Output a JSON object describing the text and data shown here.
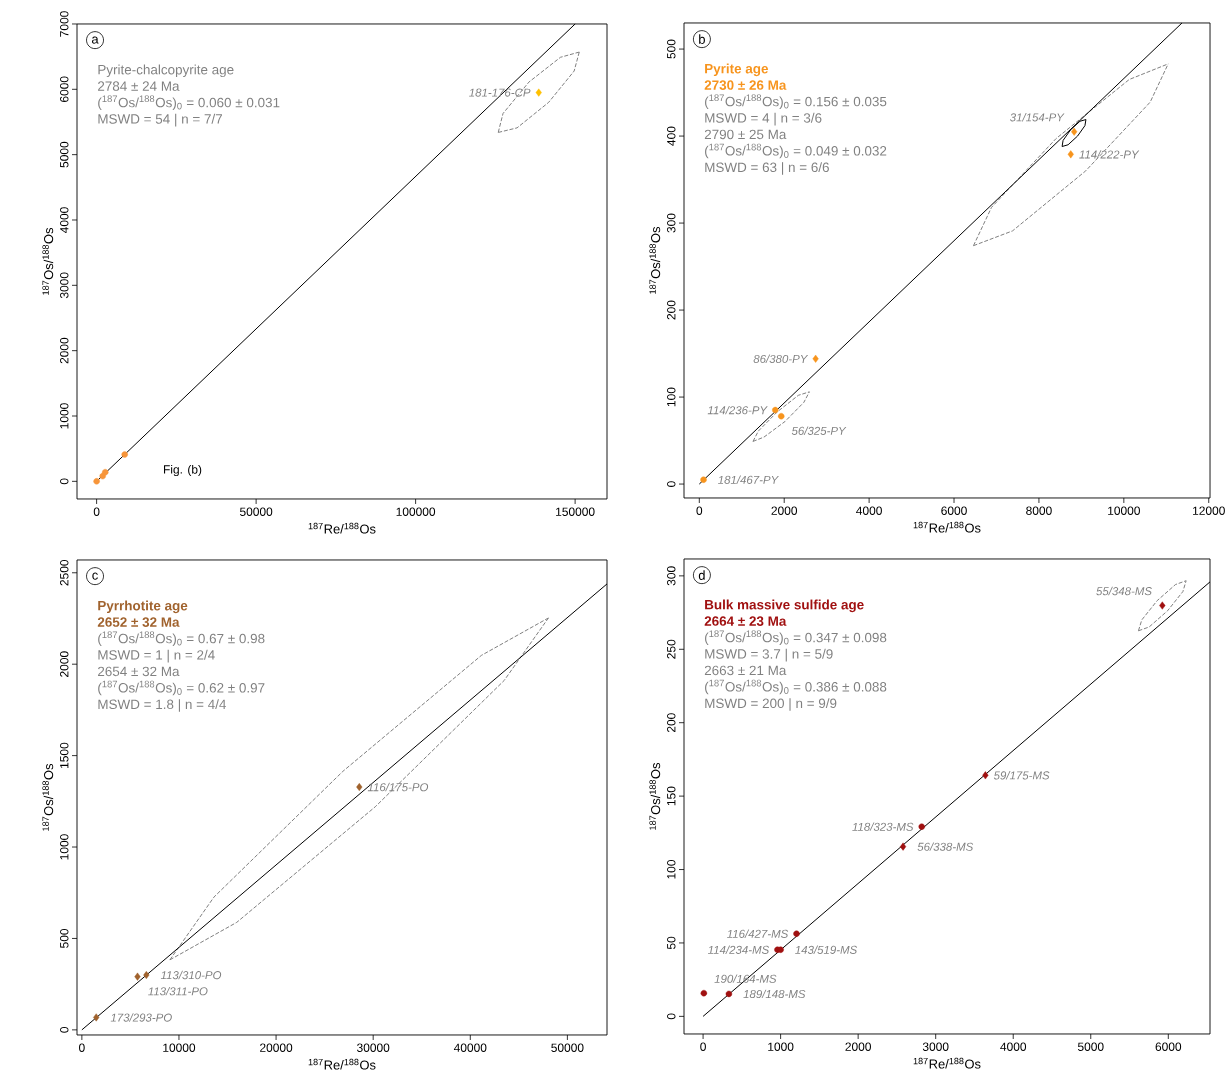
{
  "chart_data": [
    {
      "type": "scatter",
      "xlabel": "$^{187}$Re/$^{188}$Os",
      "ylabel": "$^{187}$Os/$^{188}$Os",
      "xlim": [
        -6150,
        160000
      ],
      "ylim": [
        -270,
        7000
      ],
      "xticks": [
        0,
        50000,
        100000,
        150000
      ],
      "yticks": [
        0,
        1000,
        2000,
        3000,
        4000,
        5000,
        6000,
        7000
      ],
      "series": [
        {
          "type": "line",
          "line_style": "dashed",
          "color": "#808080",
          "x": [
            125900,
            131800,
            141700,
            149700,
            151300
          ],
          "values": [
            5340,
            5410,
            5800,
            6280,
            6570
          ]
        },
        {
          "type": "line",
          "line_style": "dashed",
          "color": "#808080",
          "x": [
            125900,
            127400,
            135500,
            145400,
            151300
          ],
          "values": [
            5340,
            5630,
            6110,
            6490,
            6570
          ]
        },
        {
          "type": "line",
          "color": "#000000",
          "x": [
            0,
            150000
          ],
          "values": [
            0,
            7000
          ]
        },
        {
          "type": "scatter",
          "marker": "circle",
          "color": "#f7953a",
          "x": [
            0,
            1900,
            2700,
            8800
          ],
          "values": [
            0,
            80,
            140,
            410
          ]
        },
        {
          "type": "scatter",
          "marker": "diamond",
          "color": "#ffc000",
          "x": [
            138600
          ],
          "values": [
            5950
          ]
        }
      ],
      "annotations": [
        "a",
        "Pyrite-chalcopyrite age",
        "2784 ± 24 Ma",
        "($^{187}$Os/$^{188}$Os)$_{0}$ = 0.060 ± 0.031",
        "MSWD = 54 | n = 7/7",
        {
          "text": "181-176-CP",
          "x": 138600,
          "y": 5950
        },
        "Fig. (b)"
      ]
    },
    {
      "type": "scatter",
      "title": "Pyrite age",
      "subtitle": "2730 ± 26 Ma",
      "xlabel": "$^{187}$Re/$^{188}$Os",
      "ylabel": "$^{187}$Os/$^{188}$Os",
      "xlim": [
        -360,
        12030
      ],
      "ylim": [
        -16,
        530
      ],
      "xticks": [
        0,
        2000,
        4000,
        6000,
        8000,
        10000,
        12000
      ],
      "yticks": [
        0,
        100,
        200,
        300,
        400,
        500
      ],
      "series": [
        {
          "type": "line",
          "line_style": "dashed",
          "color": "#808080",
          "x": [
            6458,
            7378,
            9102,
            10620,
            11045
          ],
          "values": [
            274,
            291,
            360,
            439,
            483
          ]
        },
        {
          "type": "line",
          "line_style": "dashed",
          "color": "#808080",
          "x": [
            6458,
            6883,
            8401,
            10126,
            11045
          ],
          "values": [
            274,
            318,
            397,
            465,
            483
          ]
        },
        {
          "type": "line",
          "line_style": "dashed",
          "color": "#808080",
          "x": [
            1264,
            1524,
            2021,
            2464,
            2593
          ],
          "values": [
            49,
            54,
            72,
            94,
            106
          ]
        },
        {
          "type": "line",
          "line_style": "dashed",
          "color": "#808080",
          "x": [
            1264,
            1393,
            1836,
            2333,
            2593
          ],
          "values": [
            49,
            61,
            83,
            102,
            106
          ]
        },
        {
          "type": "line",
          "color": "#000000",
          "x": [
            8546,
            8687,
            8910,
            9084,
            9107
          ],
          "values": [
            388,
            390,
            400,
            412,
            419
          ]
        },
        {
          "type": "line",
          "color": "#000000",
          "x": [
            8546,
            8569,
            8743,
            8966,
            9107
          ],
          "values": [
            388,
            395,
            407,
            417,
            419
          ]
        },
        {
          "type": "line",
          "color": "#000000",
          "x": [
            0,
            11370
          ],
          "values": [
            0,
            530
          ]
        },
        {
          "type": "scatter",
          "marker": "circle",
          "color": "#f7941d",
          "x": [
            100,
            1790,
            1930
          ],
          "values": [
            5,
            85,
            78
          ]
        },
        {
          "type": "scatter",
          "marker": "diamond",
          "color": "#f7941d",
          "x": [
            2740,
            8750,
            8830
          ],
          "values": [
            144,
            379,
            405
          ]
        }
      ],
      "annotations": [
        "b",
        "($^{187}$Os/$^{188}$Os)$_{0}$ = 0.156 ± 0.035",
        "MSWD = 4 | n = 3/6",
        "2790 ± 25 Ma",
        "($^{187}$Os/$^{188}$Os)$_{0}$ = 0.049 ± 0.032",
        "MSWD = 63 | n = 6/6",
        {
          "text": "181/467-PY",
          "x": 100,
          "y": 5
        },
        {
          "text": "86/380-PY",
          "x": 2740,
          "y": 144
        },
        {
          "text": "56/325-PY",
          "x": 1930,
          "y": 78
        },
        {
          "text": "114/236-PY",
          "x": 1790,
          "y": 85
        },
        {
          "text": "31/154-PY",
          "x": 8830,
          "y": 405
        },
        {
          "text": "114/222-PY",
          "x": 8750,
          "y": 379
        }
      ]
    },
    {
      "type": "scatter",
      "title": "Pyrrhotite age",
      "subtitle": "2652 ± 32 Ma",
      "xlabel": "$^{187}$Re/$^{188}$Os",
      "ylabel": "$^{187}$Os/$^{188}$Os",
      "xlim": [
        -500,
        54080
      ],
      "ylim": [
        -28,
        2570
      ],
      "xticks": [
        0,
        10000,
        20000,
        30000,
        40000,
        50000
      ],
      "yticks": [
        0,
        500,
        1000,
        1500,
        2000,
        2500
      ],
      "series": [
        {
          "type": "line",
          "line_style": "dashed",
          "color": "#808080",
          "x": [
            9068,
            15950,
            30210,
            43490,
            48050
          ],
          "values": [
            383,
            588,
            1220,
            1911,
            2253
          ]
        },
        {
          "type": "line",
          "line_style": "dashed",
          "color": "#808080",
          "x": [
            9068,
            13600,
            26880,
            41140,
            48050
          ],
          "values": [
            383,
            726,
            1414,
            2048,
            2253
          ]
        },
        {
          "type": "line",
          "color": "#000000",
          "x": [
            0,
            54080
          ],
          "values": [
            0,
            2439
          ]
        },
        {
          "type": "scatter",
          "marker": "diamond",
          "color": "#a0622d",
          "x": [
            1480,
            5730,
            6640,
            28570
          ],
          "values": [
            68,
            291,
            300,
            1328
          ]
        }
      ],
      "annotations": [
        "c",
        "($^{187}$Os/$^{188}$Os)$_{0}$ = 0.67 ± 0.98",
        "MSWD = 1 | n = 2/4",
        "2654 ± 32 Ma",
        "($^{187}$Os/$^{188}$Os)$_{0}$ = 0.62 ± 0.97",
        "MSWD = 1.8 | n = 4/4",
        {
          "text": "173/293-PO",
          "x": 1480,
          "y": 68
        },
        {
          "text": "113/311-PO",
          "x": 5730,
          "y": 291
        },
        {
          "text": "113/310-PO",
          "x": 6640,
          "y": 300
        },
        {
          "text": "116/175-PO",
          "x": 28570,
          "y": 1328
        }
      ]
    },
    {
      "type": "scatter",
      "title": "Bulk massive sulfide age",
      "subtitle": "2664 ± 23 Ma",
      "xlabel": "$^{187}$Re/$^{188}$Os",
      "ylabel": "$^{187}$Os/$^{188}$Os",
      "xlim": [
        -246,
        6538
      ],
      "ylim": [
        -12,
        311.5
      ],
      "xticks": [
        0,
        1000,
        2000,
        3000,
        4000,
        5000,
        6000
      ],
      "yticks": [
        0,
        50,
        100,
        150,
        200,
        250,
        300
      ],
      "series": [
        {
          "type": "line",
          "line_style": "dashed",
          "color": "#808080",
          "x": [
            5615,
            5753,
            5990,
            6188,
            6230
          ],
          "values": [
            262.6,
            265.2,
            276.2,
            289.3,
            296.7
          ]
        },
        {
          "type": "line",
          "line_style": "dashed",
          "color": "#808080",
          "x": [
            5615,
            5658,
            5856,
            6093,
            6230
          ],
          "values": [
            262.6,
            270,
            283.1,
            294.1,
            296.7
          ]
        },
        {
          "type": "line",
          "color": "#000000",
          "x": [
            0,
            6538
          ],
          "values": [
            0,
            295.9
          ]
        },
        {
          "type": "scatter",
          "marker": "circle",
          "color": "#a01010",
          "x": [
            10,
            333,
            959,
            1000,
            1205,
            2820
          ],
          "values": [
            15.8,
            15.3,
            45.4,
            45.4,
            56.3,
            129.2
          ]
        },
        {
          "type": "scatter",
          "marker": "diamond",
          "color": "#a01010",
          "x": [
            2579,
            3641,
            5923
          ],
          "values": [
            115.6,
            164.2,
            279.8
          ]
        }
      ],
      "annotations": [
        "d",
        "($^{187}$Os/$^{188}$Os)$_{0}$ = 0.347 ± 0.098",
        "MSWD = 3.7 | n = 5/9",
        "2663 ± 21 Ma",
        "($^{187}$Os/$^{188}$Os)$_{0}$ = 0.386 ± 0.088",
        "MSWD = 200 | n = 9/9",
        {
          "text": "190/164-MS",
          "x": 10,
          "y": 15.8
        },
        {
          "text": "189/148-MS",
          "x": 333,
          "y": 15.3
        },
        {
          "text": "143/519-MS",
          "x": 1000,
          "y": 45.4
        },
        {
          "text": "114/234-MS",
          "x": 959,
          "y": 45.4
        },
        {
          "text": "116/427-MS",
          "x": 1205,
          "y": 56.3
        },
        {
          "text": "56/338-MS",
          "x": 2579,
          "y": 115.6
        },
        {
          "text": "118/323-MS",
          "x": 2820,
          "y": 129.2
        },
        {
          "text": "59/175-MS",
          "x": 3641,
          "y": 164.2
        },
        {
          "text": "55/348-MS",
          "x": 5923,
          "y": 279.8
        }
      ]
    }
  ]
}
